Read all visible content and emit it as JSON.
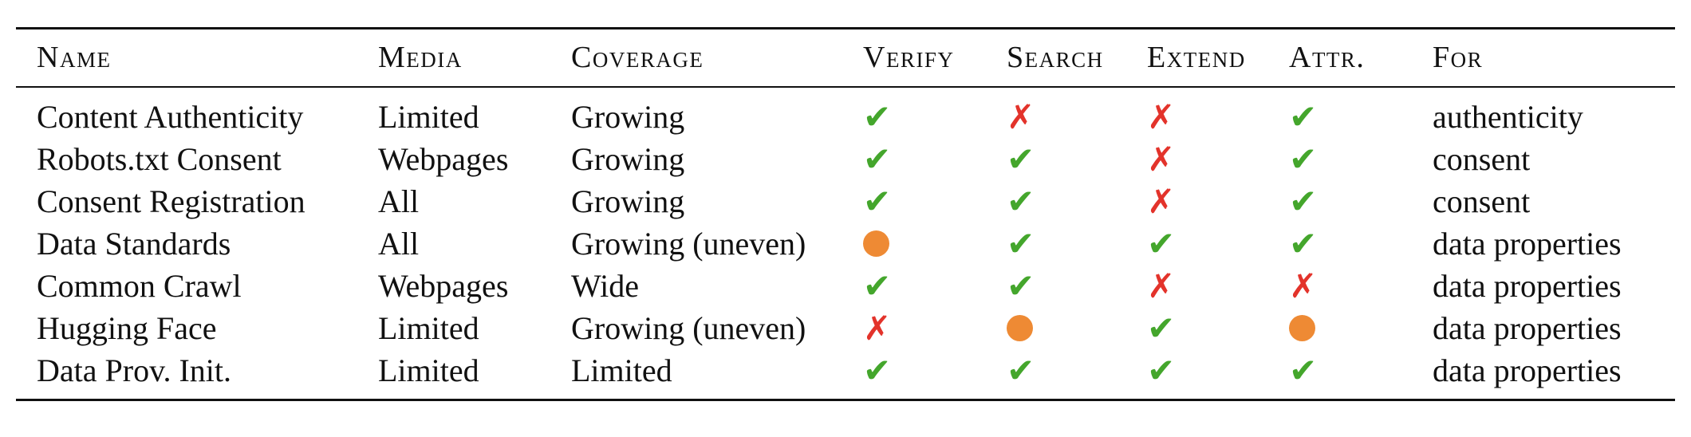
{
  "table": {
    "headers": {
      "name": "Name",
      "media": "Media",
      "coverage": "Coverage",
      "verify": "Verify",
      "search": "Search",
      "extend": "Extend",
      "attr": "Attr.",
      "for": "For"
    },
    "mark_glyphs": {
      "yes": "✔",
      "no": "✗"
    },
    "colors": {
      "yes": "#44a62c",
      "no": "#e3332b",
      "partial": "#ee8a34"
    },
    "rows": [
      {
        "name": "Content Authenticity",
        "media": "Limited",
        "coverage": "Growing",
        "verify": "yes",
        "search": "no",
        "extend": "no",
        "attr": "yes",
        "for": "authenticity"
      },
      {
        "name": "Robots.txt Consent",
        "media": "Webpages",
        "coverage": "Growing",
        "verify": "yes",
        "search": "yes",
        "extend": "no",
        "attr": "yes",
        "for": "consent"
      },
      {
        "name": "Consent Registration",
        "media": "All",
        "coverage": "Growing",
        "verify": "yes",
        "search": "yes",
        "extend": "no",
        "attr": "yes",
        "for": "consent"
      },
      {
        "name": "Data Standards",
        "media": "All",
        "coverage": "Growing (uneven)",
        "verify": "partial",
        "search": "yes",
        "extend": "yes",
        "attr": "yes",
        "for": "data properties"
      },
      {
        "name": "Common Crawl",
        "media": "Webpages",
        "coverage": "Wide",
        "verify": "yes",
        "search": "yes",
        "extend": "no",
        "attr": "no",
        "for": "data properties"
      },
      {
        "name": "Hugging Face",
        "media": "Limited",
        "coverage": "Growing (uneven)",
        "verify": "no",
        "search": "partial",
        "extend": "yes",
        "attr": "partial",
        "for": "data properties"
      },
      {
        "name": "Data Prov. Init.",
        "media": "Limited",
        "coverage": "Limited",
        "verify": "yes",
        "search": "yes",
        "extend": "yes",
        "attr": "yes",
        "for": "data properties"
      }
    ]
  }
}
